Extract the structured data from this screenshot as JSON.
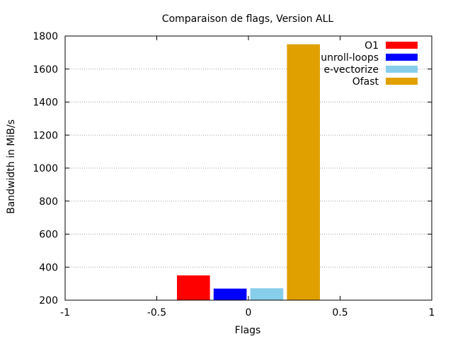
{
  "chart_data": {
    "type": "bar",
    "title": "Comparaison de flags, Version ALL",
    "xlabel": "Flags",
    "ylabel": "Bandwidth in MiB/s",
    "xlim": [
      -1,
      1
    ],
    "ylim": [
      200,
      1800
    ],
    "xticks": [
      "-1",
      "-0.5",
      "0",
      "0.5",
      "1"
    ],
    "yticks": [
      "200",
      "400",
      "600",
      "800",
      "1000",
      "1200",
      "1400",
      "1600",
      "1800"
    ],
    "grid": true,
    "legend_position": "top-right",
    "bar_width": 0.18,
    "series": [
      {
        "name": "O1",
        "x": -0.3,
        "value": 350,
        "color": "#ff0000"
      },
      {
        "name": "unroll-loops",
        "x": -0.1,
        "value": 270,
        "color": "#0000ff"
      },
      {
        "name": "e-vectorize",
        "x": 0.1,
        "value": 272,
        "color": "#87ceeb"
      },
      {
        "name": "Ofast",
        "x": 0.3,
        "value": 1750,
        "color": "#e0a000"
      }
    ]
  }
}
